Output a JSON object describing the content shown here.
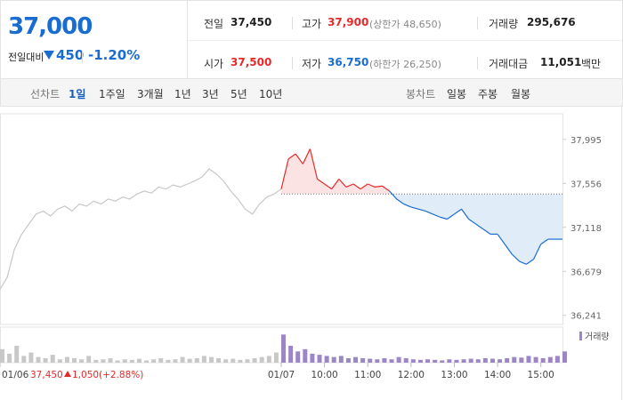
{
  "header": {
    "price": "37,000",
    "change_label": "전일대비",
    "change": "450",
    "change_rate": "-1.20%",
    "stats": [
      {
        "label": "전일",
        "value": "37,450"
      },
      {
        "label": "고가",
        "value": "37,900",
        "note": "(상한가 48,650)"
      },
      {
        "label": "거래량",
        "value": "295,676"
      },
      {
        "label": "시가",
        "value": "37,500"
      },
      {
        "label": "저가",
        "value": "36,750",
        "note": "(하한가 26,250)"
      },
      {
        "label": "거래대금",
        "value": "11,051",
        "unit": "백만"
      }
    ]
  },
  "tabs": {
    "line_label": "선차트",
    "line_periods": [
      "1일",
      "1주일",
      "3개월",
      "1년",
      "3년",
      "5년",
      "10년"
    ],
    "candle_label": "봉차트",
    "candle_periods": [
      "일봉",
      "주봉",
      "월봉"
    ]
  },
  "chart_data": {
    "type": "line",
    "xlim": [
      -390,
      390
    ],
    "xticks": [
      {
        "value": -390,
        "label": "01/06"
      },
      {
        "value": 0,
        "label": "01/07"
      },
      {
        "value": 60,
        "label": "10:00"
      },
      {
        "value": 120,
        "label": "11:00"
      },
      {
        "value": 180,
        "label": "12:00"
      },
      {
        "value": 240,
        "label": "13:00"
      },
      {
        "value": 300,
        "label": "14:00"
      },
      {
        "value": 360,
        "label": "15:00"
      }
    ],
    "ylim": [
      36150,
      38250
    ],
    "yticks": [
      {
        "value": 37995,
        "label": "37,995"
      },
      {
        "value": 37556,
        "label": "37,556"
      },
      {
        "value": 37118,
        "label": "37,118"
      },
      {
        "value": 36679,
        "label": "36,679"
      },
      {
        "value": 36241,
        "label": "36,241"
      }
    ],
    "reference_value": 37450,
    "series": [
      {
        "color": "#c8c8c8",
        "x": [
          -390,
          -380,
          -370,
          -360,
          -350,
          -340,
          -330,
          -320,
          -310,
          -300,
          -290,
          -280,
          -270,
          -260,
          -250,
          -240,
          -230,
          -220,
          -210,
          -200,
          -190,
          -180,
          -170,
          -160,
          -150,
          -140,
          -130,
          -120,
          -110,
          -100,
          -90,
          -80,
          -70,
          -60,
          -50,
          -40,
          -30,
          -20,
          -10
        ],
        "values": [
          36500,
          36620,
          36900,
          37050,
          37150,
          37250,
          37280,
          37230,
          37300,
          37330,
          37280,
          37350,
          37330,
          37380,
          37350,
          37400,
          37380,
          37420,
          37400,
          37450,
          37480,
          37460,
          37520,
          37500,
          37540,
          37520,
          37550,
          37580,
          37620,
          37700,
          37650,
          37580,
          37480,
          37400,
          37300,
          37250,
          37350,
          37420,
          37450
        ]
      },
      {
        "color_up": "#e52a2a",
        "color_down": "#1a6dd0",
        "fill_up": "#fbe3e3",
        "fill_down": "#e1ecf9",
        "x": [
          0,
          10,
          20,
          30,
          40,
          50,
          60,
          70,
          80,
          90,
          100,
          110,
          120,
          130,
          140,
          150,
          160,
          170,
          180,
          190,
          200,
          210,
          220,
          230,
          240,
          250,
          260,
          270,
          280,
          290,
          300,
          310,
          320,
          330,
          340,
          350,
          360,
          370,
          380,
          390
        ],
        "values": [
          37500,
          37800,
          37850,
          37750,
          37900,
          37600,
          37550,
          37500,
          37600,
          37520,
          37550,
          37500,
          37550,
          37520,
          37530,
          37480,
          37400,
          37350,
          37320,
          37300,
          37280,
          37250,
          37220,
          37200,
          37250,
          37300,
          37200,
          37150,
          37100,
          37050,
          37050,
          36950,
          36850,
          36780,
          36750,
          36800,
          36950,
          37000,
          37000,
          37000
        ]
      }
    ],
    "volume": {
      "name": "거래량",
      "ylim": [
        0,
        30000
      ],
      "series": [
        {
          "color": "#c8c8c8",
          "x": [
            -390,
            -380,
            -370,
            -360,
            -350,
            -340,
            -330,
            -320,
            -310,
            -300,
            -290,
            -280,
            -270,
            -260,
            -250,
            -240,
            -230,
            -220,
            -210,
            -200,
            -190,
            -180,
            -170,
            -160,
            -150,
            -140,
            -130,
            -120,
            -110,
            -100,
            -90,
            -80,
            -70,
            -60,
            -50,
            -40,
            -30,
            -20,
            -10
          ],
          "values": [
            12000,
            8000,
            15000,
            6000,
            9000,
            5000,
            4000,
            7000,
            3000,
            5000,
            4000,
            3000,
            6000,
            2500,
            3000,
            4000,
            2000,
            3000,
            2500,
            3500,
            2000,
            3000,
            4000,
            2500,
            3000,
            5000,
            3500,
            4000,
            6000,
            5000,
            4000,
            3000,
            3500,
            2500,
            3000,
            4000,
            5000,
            6000,
            9000
          ]
        },
        {
          "color": "#9d86c6",
          "x": [
            0,
            10,
            20,
            30,
            40,
            50,
            60,
            70,
            80,
            90,
            100,
            110,
            120,
            130,
            140,
            150,
            160,
            170,
            180,
            190,
            200,
            210,
            220,
            230,
            240,
            250,
            260,
            270,
            280,
            290,
            300,
            310,
            320,
            330,
            340,
            350,
            360,
            370,
            380,
            390
          ],
          "values": [
            25000,
            15000,
            10000,
            12000,
            8000,
            7000,
            6000,
            5000,
            6000,
            4000,
            5000,
            4000,
            3500,
            3000,
            4000,
            3000,
            5000,
            4000,
            3000,
            2500,
            3000,
            2500,
            2000,
            3000,
            2500,
            3000,
            3500,
            3000,
            4000,
            3500,
            3000,
            4000,
            5000,
            4500,
            6000,
            5000,
            4000,
            5000,
            6000,
            10000
          ]
        }
      ]
    },
    "prev_day_note": {
      "close": "37,450",
      "change": "1,050",
      "rate": "(+2.88%)"
    }
  }
}
